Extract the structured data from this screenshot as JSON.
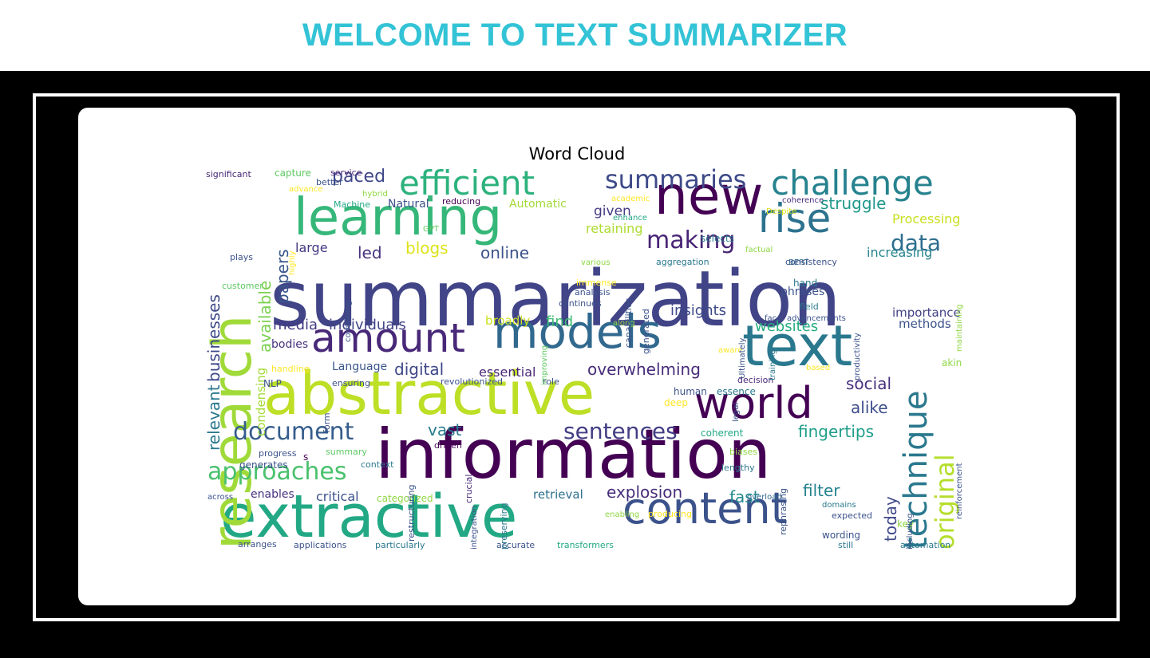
{
  "header": {
    "title": "WELCOME TO TEXT SUMMARIZER"
  },
  "cloud": {
    "title": "Word Cloud",
    "words": [
      {
        "text": "summarization",
        "size": 96,
        "color": "#414487"
      },
      {
        "text": "information",
        "size": 86,
        "color": "#440154"
      },
      {
        "text": "extractive",
        "size": 74,
        "color": "#22a884"
      },
      {
        "text": "abstractive",
        "size": 74,
        "color": "#bddf26"
      },
      {
        "text": "research",
        "size": 68,
        "color": "#a0da39",
        "vertical": true
      },
      {
        "text": "learning",
        "size": 64,
        "color": "#35b779"
      },
      {
        "text": "text",
        "size": 70,
        "color": "#2a788e"
      },
      {
        "text": "models",
        "size": 58,
        "color": "#31688e"
      },
      {
        "text": "new",
        "size": 66,
        "color": "#440154"
      },
      {
        "text": "content",
        "size": 54,
        "color": "#3b528b"
      },
      {
        "text": "world",
        "size": 54,
        "color": "#440154"
      },
      {
        "text": "amount",
        "size": 50,
        "color": "#482878"
      },
      {
        "text": "rise",
        "size": 50,
        "color": "#2c728e"
      },
      {
        "text": "challenge",
        "size": 42,
        "color": "#26828e"
      },
      {
        "text": "efficient",
        "size": 42,
        "color": "#2db27d"
      },
      {
        "text": "technique",
        "size": 40,
        "color": "#2a788e",
        "vertical": true
      },
      {
        "text": "summaries",
        "size": 32,
        "color": "#3e4a89"
      },
      {
        "text": "original",
        "size": 32,
        "color": "#b5de2b",
        "vertical": true
      },
      {
        "text": "approaches",
        "size": 30,
        "color": "#4ac16d"
      },
      {
        "text": "document",
        "size": 30,
        "color": "#365d8d"
      },
      {
        "text": "sentences",
        "size": 28,
        "color": "#433e85"
      },
      {
        "text": "making",
        "size": 30,
        "color": "#482475"
      },
      {
        "text": "data",
        "size": 28,
        "color": "#2e6e8e"
      },
      {
        "text": "businesses",
        "size": 20,
        "color": "#3e4a89",
        "vertical": true
      },
      {
        "text": "available",
        "size": 20,
        "color": "#7ad151",
        "vertical": true
      },
      {
        "text": "papers",
        "size": 20,
        "color": "#39568c",
        "vertical": true
      },
      {
        "text": "relevant",
        "size": 20,
        "color": "#2a788e",
        "vertical": true
      },
      {
        "text": "condensing",
        "size": 15,
        "color": "#a5db36",
        "vertical": true
      },
      {
        "text": "paced",
        "size": 22,
        "color": "#3f4788"
      },
      {
        "text": "struggle",
        "size": 20,
        "color": "#1f988b"
      },
      {
        "text": "given",
        "size": 17,
        "color": "#443983"
      },
      {
        "text": "retaining",
        "size": 16,
        "color": "#addc30"
      },
      {
        "text": "blogs",
        "size": 20,
        "color": "#dde318"
      },
      {
        "text": "led",
        "size": 20,
        "color": "#46327e"
      },
      {
        "text": "online",
        "size": 20,
        "color": "#3b528b"
      },
      {
        "text": "large",
        "size": 16,
        "color": "#453781"
      },
      {
        "text": "Processing",
        "size": 16,
        "color": "#c8e020"
      },
      {
        "text": "increasing",
        "size": 16,
        "color": "#25848e"
      },
      {
        "text": "insights",
        "size": 18,
        "color": "#3e4989"
      },
      {
        "text": "websites",
        "size": 18,
        "color": "#26ad81"
      },
      {
        "text": "importance",
        "size": 15,
        "color": "#424086"
      },
      {
        "text": "methods",
        "size": 15,
        "color": "#3b528b"
      },
      {
        "text": "media",
        "size": 18,
        "color": "#443a83"
      },
      {
        "text": "individuals",
        "size": 18,
        "color": "#414487"
      },
      {
        "text": "broadly",
        "size": 15,
        "color": "#cae11f"
      },
      {
        "text": "find",
        "size": 18,
        "color": "#3dbc74"
      },
      {
        "text": "bodies",
        "size": 14,
        "color": "#46337e"
      },
      {
        "text": "digital",
        "size": 20,
        "color": "#3f4788"
      },
      {
        "text": "essential",
        "size": 16,
        "color": "#482576"
      },
      {
        "text": "Language",
        "size": 14,
        "color": "#39558c"
      },
      {
        "text": "overwhelming",
        "size": 20,
        "color": "#472c7a"
      },
      {
        "text": "social",
        "size": 20,
        "color": "#46307e"
      },
      {
        "text": "alike",
        "size": 20,
        "color": "#3d4d8a"
      },
      {
        "text": "vast",
        "size": 20,
        "color": "#287c8e"
      },
      {
        "text": "fingertips",
        "size": 20,
        "color": "#1f9e89"
      },
      {
        "text": "explosion",
        "size": 20,
        "color": "#472d7b"
      },
      {
        "text": "today",
        "size": 20,
        "color": "#3f4889",
        "vertical": true
      },
      {
        "text": "filter",
        "size": 20,
        "color": "#25838e"
      },
      {
        "text": "fast",
        "size": 20,
        "color": "#23898e"
      },
      {
        "text": "critical",
        "size": 16,
        "color": "#3b528b"
      },
      {
        "text": "retrieval",
        "size": 15,
        "color": "#2d708e"
      },
      {
        "text": "enables",
        "size": 14,
        "color": "#46317e"
      },
      {
        "text": "categorized",
        "size": 12,
        "color": "#8fd744"
      },
      {
        "text": "capture",
        "size": 12,
        "color": "#5ec962"
      },
      {
        "text": "service",
        "size": 11,
        "color": "#482878"
      },
      {
        "text": "significant",
        "size": 11,
        "color": "#482878"
      },
      {
        "text": "better",
        "size": 11,
        "color": "#3b528b"
      },
      {
        "text": "advance",
        "size": 10,
        "color": "#fde725"
      },
      {
        "text": "hybrid",
        "size": 10,
        "color": "#8fd744"
      },
      {
        "text": "reducing",
        "size": 11,
        "color": "#440154"
      },
      {
        "text": "Automatic",
        "size": 14,
        "color": "#a2da37"
      },
      {
        "text": "Machine",
        "size": 11,
        "color": "#22a884"
      },
      {
        "text": "Natural",
        "size": 14,
        "color": "#3b528b"
      },
      {
        "text": "GPT",
        "size": 10,
        "color": "#5ec962"
      },
      {
        "text": "academic",
        "size": 10,
        "color": "#fde725"
      },
      {
        "text": "enhance",
        "size": 10,
        "color": "#22a884"
      },
      {
        "text": "coherence",
        "size": 10,
        "color": "#472d7b"
      },
      {
        "text": "Despite",
        "size": 10,
        "color": "#dde318"
      },
      {
        "text": "selects",
        "size": 12,
        "color": "#2a788e"
      },
      {
        "text": "factual",
        "size": 10,
        "color": "#8fd744"
      },
      {
        "text": "BERT",
        "size": 10,
        "color": "#31688e"
      },
      {
        "text": "consistency",
        "size": 11,
        "color": "#3b528b"
      },
      {
        "text": "aggregation",
        "size": 11,
        "color": "#2a788e"
      },
      {
        "text": "various",
        "size": 10,
        "color": "#8fd744"
      },
      {
        "text": "plays",
        "size": 11,
        "color": "#3b528b"
      },
      {
        "text": "customer",
        "size": 11,
        "color": "#5ec962"
      },
      {
        "text": "immense",
        "size": 11,
        "color": "#fde725"
      },
      {
        "text": "analysis",
        "size": 11,
        "color": "#3b528b"
      },
      {
        "text": "continues",
        "size": 11,
        "color": "#3b528b"
      },
      {
        "text": "hand",
        "size": 12,
        "color": "#2a788e"
      },
      {
        "text": "phrases",
        "size": 14,
        "color": "#3b528b"
      },
      {
        "text": "field",
        "size": 11,
        "color": "#2a788e"
      },
      {
        "text": "face",
        "size": 10,
        "color": "#3b528b"
      },
      {
        "text": "advancements",
        "size": 10,
        "color": "#3b528b"
      },
      {
        "text": "along",
        "size": 10,
        "color": "#8fd744"
      },
      {
        "text": "aware",
        "size": 10,
        "color": "#fde725"
      },
      {
        "text": "handling",
        "size": 11,
        "color": "#fde725"
      },
      {
        "text": "NLP",
        "size": 12,
        "color": "#3b528b"
      },
      {
        "text": "ensuring",
        "size": 11,
        "color": "#3b528b"
      },
      {
        "text": "revolutionized",
        "size": 11,
        "color": "#3b528b"
      },
      {
        "text": "role",
        "size": 11,
        "color": "#3b528b"
      },
      {
        "text": "human",
        "size": 12,
        "color": "#3b528b"
      },
      {
        "text": "essence",
        "size": 12,
        "color": "#2a788e"
      },
      {
        "text": "decision",
        "size": 11,
        "color": "#482878"
      },
      {
        "text": "based",
        "size": 10,
        "color": "#fde725"
      },
      {
        "text": "akin",
        "size": 12,
        "color": "#8fd744"
      },
      {
        "text": "deep",
        "size": 12,
        "color": "#fde725"
      },
      {
        "text": "coherent",
        "size": 12,
        "color": "#22a884"
      },
      {
        "text": "biases",
        "size": 11,
        "color": "#8fd744"
      },
      {
        "text": "lengthy",
        "size": 11,
        "color": "#2a788e"
      },
      {
        "text": "summary",
        "size": 11,
        "color": "#5ec962"
      },
      {
        "text": "progress",
        "size": 11,
        "color": "#3b528b"
      },
      {
        "text": "generates",
        "size": 12,
        "color": "#3b528b"
      },
      {
        "text": "context",
        "size": 11,
        "color": "#2a788e"
      },
      {
        "text": "driven",
        "size": 11,
        "color": "#440154"
      },
      {
        "text": "across",
        "size": 10,
        "color": "#3b528b"
      },
      {
        "text": "overload",
        "size": 10,
        "color": "#31688e"
      },
      {
        "text": "domains",
        "size": 10,
        "color": "#2a788e"
      },
      {
        "text": "expected",
        "size": 11,
        "color": "#3b528b"
      },
      {
        "text": "enabling",
        "size": 10,
        "color": "#8fd744"
      },
      {
        "text": "producing",
        "size": 11,
        "color": "#fde725"
      },
      {
        "text": "wording",
        "size": 12,
        "color": "#3b528b"
      },
      {
        "text": "key",
        "size": 12,
        "color": "#8fd744"
      },
      {
        "text": "arranges",
        "size": 11,
        "color": "#3b528b"
      },
      {
        "text": "applications",
        "size": 11,
        "color": "#3b528b"
      },
      {
        "text": "particularly",
        "size": 11,
        "color": "#2a788e"
      },
      {
        "text": "accurate",
        "size": 11,
        "color": "#3b528b"
      },
      {
        "text": "transformers",
        "size": 11,
        "color": "#22a884"
      },
      {
        "text": "still",
        "size": 11,
        "color": "#2a788e"
      },
      {
        "text": "automation",
        "size": 11,
        "color": "#2a788e"
      },
      {
        "text": "restructuring",
        "size": 11,
        "color": "#3b528b",
        "vertical": true
      },
      {
        "text": "integration",
        "size": 10,
        "color": "#3b528b",
        "vertical": true
      },
      {
        "text": "crucial",
        "size": 11,
        "color": "#482878",
        "vertical": true
      },
      {
        "text": "preserving",
        "size": 11,
        "color": "#2a788e",
        "vertical": true
      },
      {
        "text": "rephrasing",
        "size": 11,
        "color": "#3b528b",
        "vertical": true
      },
      {
        "text": "including",
        "size": 10,
        "color": "#3b528b",
        "vertical": true
      },
      {
        "text": "reinforcement",
        "size": 10,
        "color": "#3b528b",
        "vertical": true
      },
      {
        "text": "maintaining",
        "size": 10,
        "color": "#8fd744",
        "vertical": true
      },
      {
        "text": "productivity",
        "size": 10,
        "color": "#3b528b",
        "vertical": true
      },
      {
        "text": "capabilities",
        "size": 11,
        "color": "#3b528b",
        "vertical": true
      },
      {
        "text": "generated",
        "size": 11,
        "color": "#3b528b",
        "vertical": true
      },
      {
        "text": "Ultimately",
        "size": 10,
        "color": "#3b528b",
        "vertical": true
      },
      {
        "text": "training",
        "size": 10,
        "color": "#2a788e",
        "vertical": true
      },
      {
        "text": "legal",
        "size": 10,
        "color": "#3b528b",
        "vertical": true
      },
      {
        "text": "combining",
        "size": 10,
        "color": "#3b528b",
        "vertical": true
      },
      {
        "text": "improving",
        "size": 10,
        "color": "#5ec962",
        "vertical": true
      },
      {
        "text": "highly",
        "size": 10,
        "color": "#fde725",
        "vertical": true
      },
      {
        "text": "form",
        "size": 11,
        "color": "#3b528b",
        "vertical": true
      },
      {
        "text": "s",
        "size": 12,
        "color": "#440154"
      }
    ]
  }
}
